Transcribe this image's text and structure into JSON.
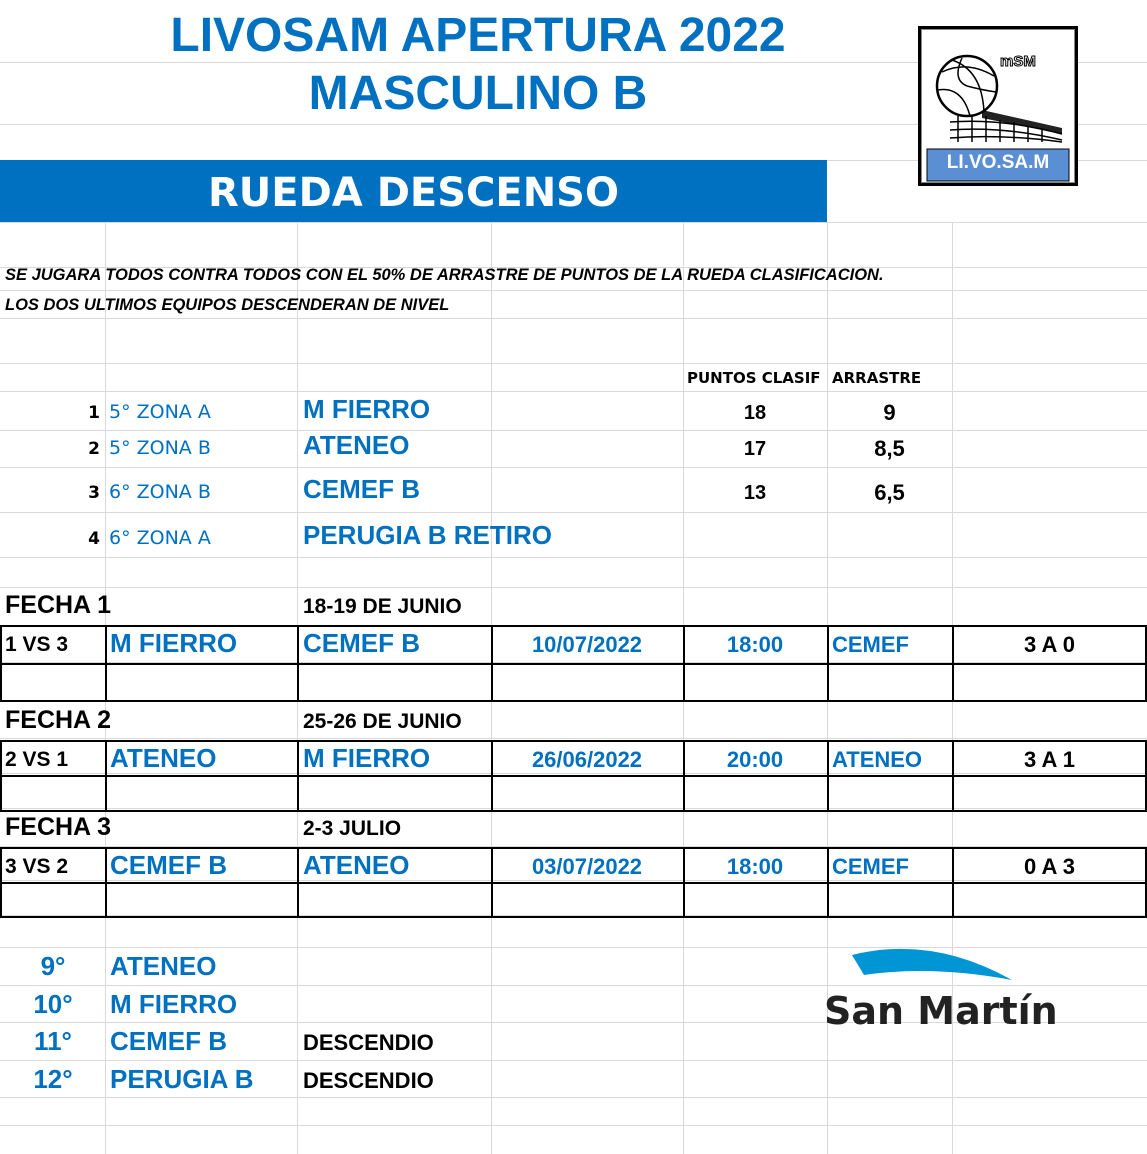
{
  "header": {
    "title_line1": "LIVOSAM APERTURA 2022",
    "title_line2": "MASCULINO B",
    "section": "RUEDA DESCENSO"
  },
  "logo": {
    "top_text": "mSM",
    "label": "LI.VO.SA.M",
    "accent": "#5B8FD4"
  },
  "notes": [
    "SE JUGARA TODOS CONTRA TODOS  CON EL 50% DE ARRASTRE DE PUNTOS DE LA RUEDA CLASIFICACION.",
    "LOS DOS ULTIMOS EQUIPOS DESCENDERAN DE NIVEL"
  ],
  "teams_table": {
    "headers": {
      "points": "PUNTOS CLASIF",
      "carry": "ARRASTRE"
    },
    "rows": [
      {
        "num": "1",
        "zone": "5° ZONA A",
        "team": "M FIERRO",
        "points": "18",
        "carry": "9"
      },
      {
        "num": "2",
        "zone": "5° ZONA B",
        "team": "ATENEO",
        "points": "17",
        "carry": "8,5"
      },
      {
        "num": "3",
        "zone": "6° ZONA B",
        "team": "CEMEF B",
        "points": "13",
        "carry": "6,5"
      },
      {
        "num": "4",
        "zone": "6° ZONA A",
        "team": "PERUGIA B RETIRO",
        "points": "",
        "carry": ""
      }
    ]
  },
  "fechas": [
    {
      "label": "FECHA 1",
      "dates": "18-19 DE JUNIO",
      "match": {
        "pair": "1 VS 3",
        "home": "M FIERRO",
        "away": "CEMEF B",
        "date": "10/07/2022",
        "time": "18:00",
        "venue": "CEMEF",
        "result": "3 A 0"
      }
    },
    {
      "label": "FECHA 2",
      "dates": "25-26 DE JUNIO",
      "match": {
        "pair": "2 VS 1",
        "home": "ATENEO",
        "away": "M FIERRO",
        "date": "26/06/2022",
        "time": "20:00",
        "venue": "ATENEO",
        "result": "3 A 1"
      }
    },
    {
      "label": "FECHA 3",
      "dates": "2-3 JULIO",
      "match": {
        "pair": "3 VS 2",
        "home": "CEMEF B",
        "away": "ATENEO",
        "date": "03/07/2022",
        "time": "18:00",
        "venue": "CEMEF",
        "result": "0 A 3"
      }
    }
  ],
  "standings": [
    {
      "pos": "9°",
      "team": "ATENEO",
      "status": ""
    },
    {
      "pos": "10°",
      "team": "M FIERRO",
      "status": ""
    },
    {
      "pos": "11°",
      "team": "CEMEF B",
      "status": "DESCENDIO"
    },
    {
      "pos": "12°",
      "team": "PERUGIA B",
      "status": "DESCENDIO"
    }
  ],
  "sponsor": {
    "name": "San Martín",
    "arc_color": "#0096D6"
  },
  "colors": {
    "brand_blue": "#0070C0"
  }
}
